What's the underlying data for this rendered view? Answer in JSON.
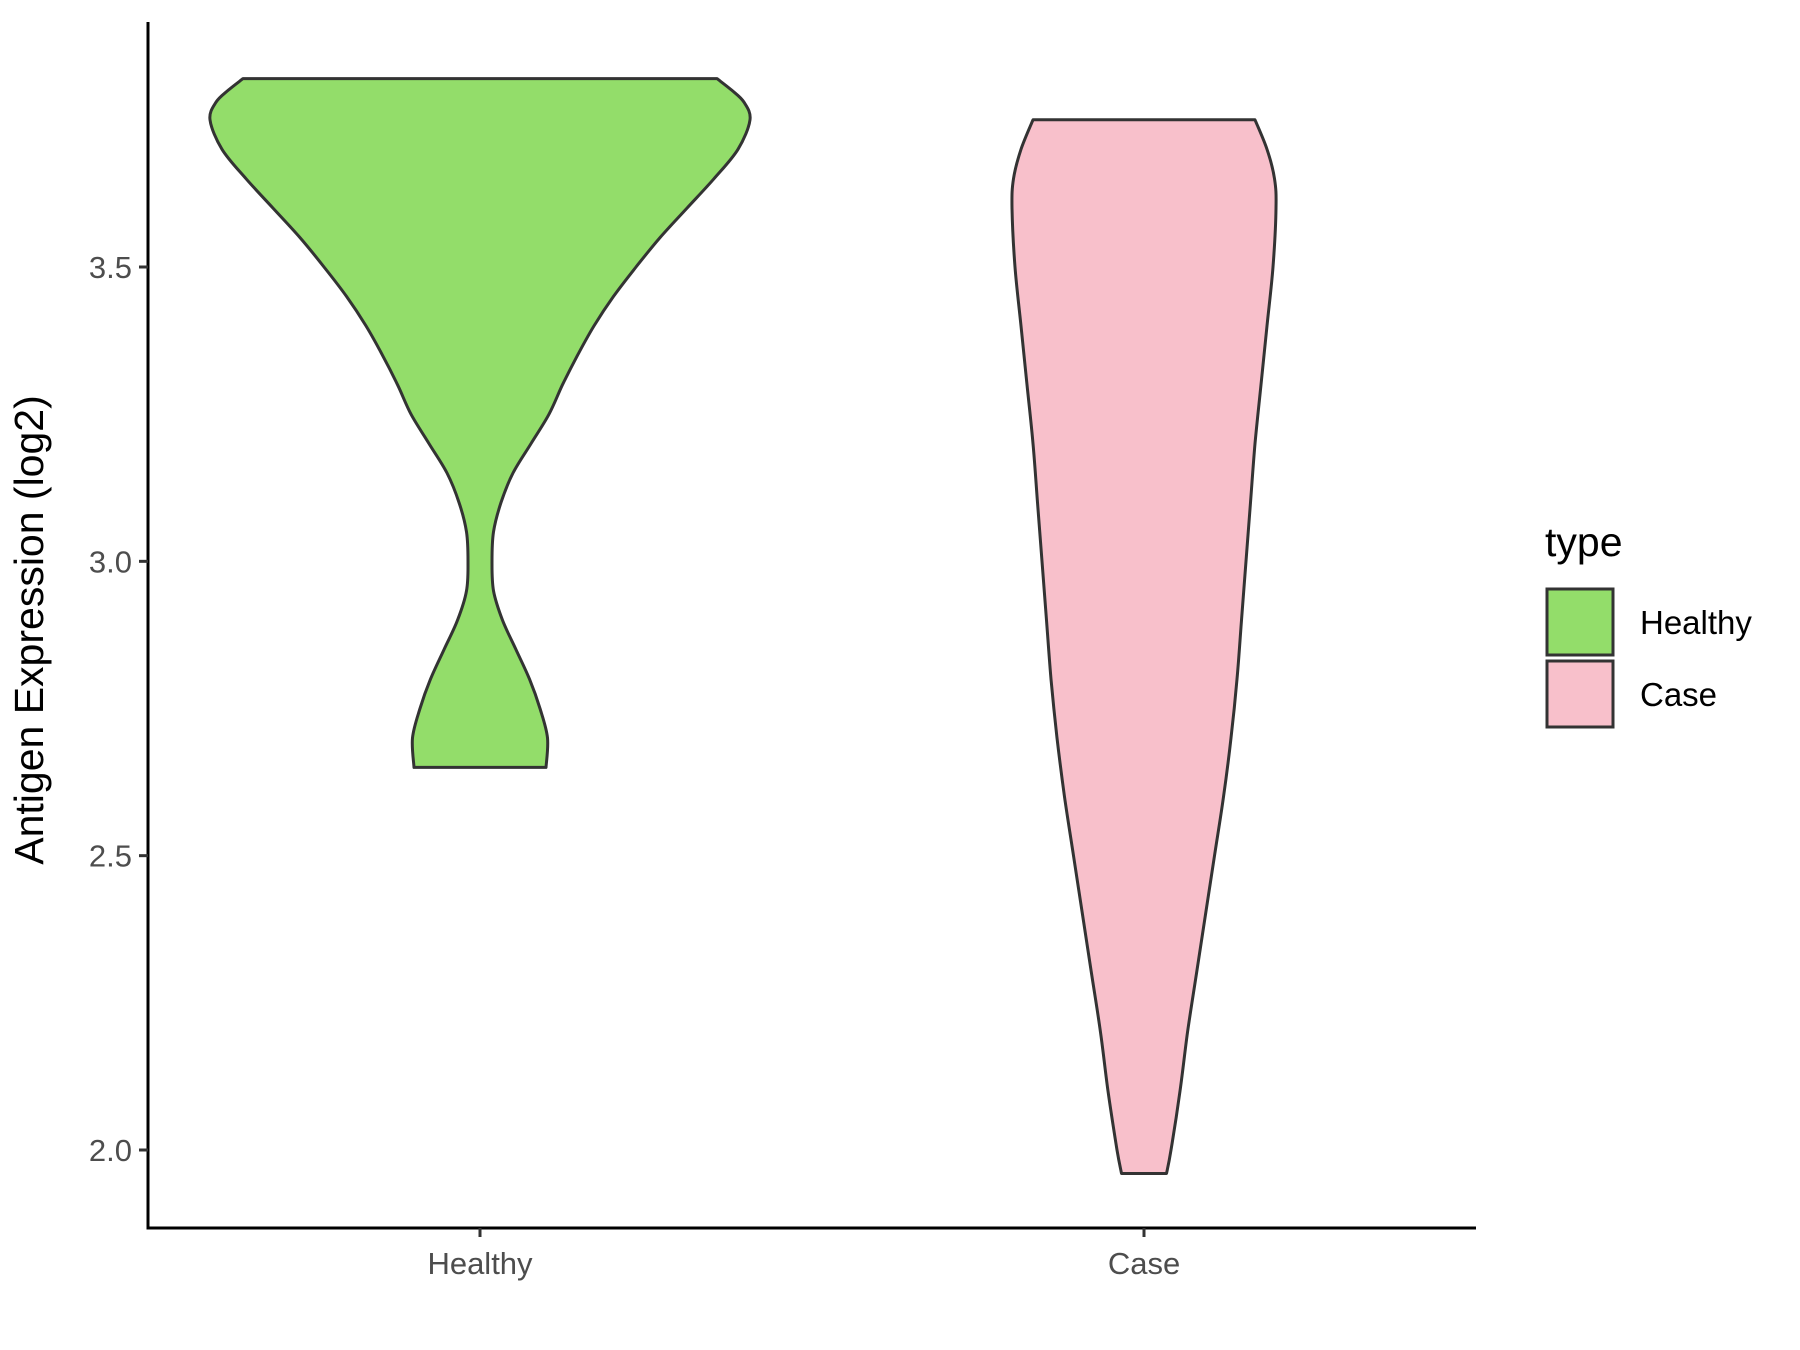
{
  "chart_data": {
    "type": "violin",
    "xlabel": "",
    "ylabel": "Antigen Expression (log2)",
    "ylim": [
      1.87,
      3.92
    ],
    "yticks": [
      "2.0",
      "2.5",
      "3.0",
      "3.5"
    ],
    "categories": [
      "Healthy",
      "Case"
    ],
    "legend": {
      "title": "type",
      "position": "right",
      "items": [
        "Healthy",
        "Case"
      ]
    },
    "grid": false,
    "series": [
      {
        "name": "Healthy",
        "color": "#93dd6a",
        "min": 2.65,
        "max": 3.82,
        "profile": [
          [
            2.65,
            0.22
          ],
          [
            2.7,
            0.225
          ],
          [
            2.75,
            0.2
          ],
          [
            2.8,
            0.165
          ],
          [
            2.85,
            0.12
          ],
          [
            2.9,
            0.075
          ],
          [
            2.95,
            0.045
          ],
          [
            3.0,
            0.04
          ],
          [
            3.05,
            0.045
          ],
          [
            3.1,
            0.07
          ],
          [
            3.15,
            0.11
          ],
          [
            3.2,
            0.17
          ],
          [
            3.25,
            0.23
          ],
          [
            3.3,
            0.275
          ],
          [
            3.35,
            0.325
          ],
          [
            3.4,
            0.38
          ],
          [
            3.45,
            0.445
          ],
          [
            3.5,
            0.52
          ],
          [
            3.55,
            0.6
          ],
          [
            3.6,
            0.69
          ],
          [
            3.65,
            0.78
          ],
          [
            3.7,
            0.86
          ],
          [
            3.75,
            0.9
          ],
          [
            3.78,
            0.88
          ],
          [
            3.8,
            0.84
          ],
          [
            3.82,
            0.79
          ]
        ]
      },
      {
        "name": "Case",
        "color": "#f8c0cb",
        "min": 1.96,
        "max": 3.75,
        "profile": [
          [
            1.96,
            0.075
          ],
          [
            2.0,
            0.09
          ],
          [
            2.1,
            0.12
          ],
          [
            2.2,
            0.145
          ],
          [
            2.3,
            0.175
          ],
          [
            2.4,
            0.205
          ],
          [
            2.5,
            0.235
          ],
          [
            2.6,
            0.265
          ],
          [
            2.7,
            0.29
          ],
          [
            2.8,
            0.31
          ],
          [
            2.9,
            0.325
          ],
          [
            3.0,
            0.34
          ],
          [
            3.1,
            0.355
          ],
          [
            3.2,
            0.37
          ],
          [
            3.3,
            0.39
          ],
          [
            3.4,
            0.41
          ],
          [
            3.5,
            0.43
          ],
          [
            3.6,
            0.44
          ],
          [
            3.65,
            0.435
          ],
          [
            3.7,
            0.41
          ],
          [
            3.75,
            0.37
          ]
        ]
      }
    ]
  }
}
